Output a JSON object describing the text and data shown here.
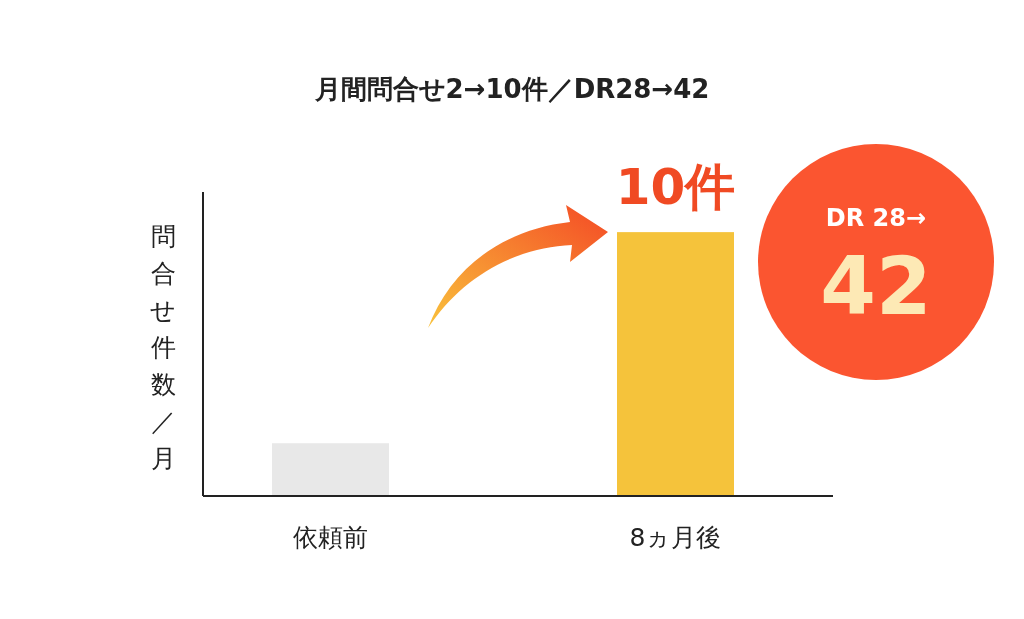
{
  "chart_data": {
    "type": "bar",
    "title": "月間問合せ2→10件／DR28→42",
    "ylabel": "問合せ件数／月",
    "categories": [
      "依頼前",
      "8ヵ月後"
    ],
    "values": [
      2,
      10
    ],
    "colors": [
      "#e8e8e8",
      "#f5c33b"
    ],
    "value_labels": [
      null,
      "10件"
    ],
    "annotations": [
      "DR 28→",
      "42"
    ]
  }
}
